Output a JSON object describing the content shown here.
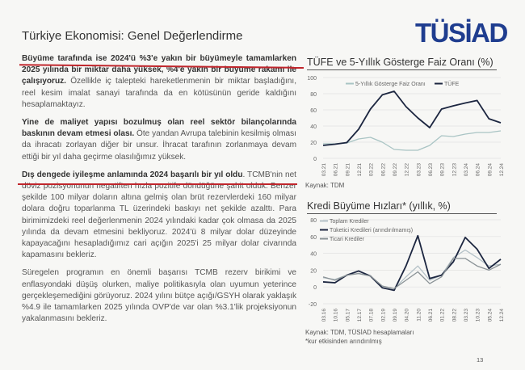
{
  "header": {
    "title": "Türkiye Ekonomisi: Genel Değerlendirme",
    "logo_text": "TÜSİAD",
    "logo_color": "#1f3d8f"
  },
  "text": {
    "p1_bold": "Büyüme tarafında ise 2024'ü %3'e yakın bir büyümeyle tamamlarken 2025 yılında bir miktar daha yüksek, %4'e yakın bir büyüme rakamı ile çalışıyoruz.",
    "p1_rest": " Özellikle iç talepteki hareketlenmenin bir miktar başladığını, reel kesim imalat sanayi tarafında da en kötüsünün geride kaldığını hesaplamaktayız.",
    "p2_bold": "Yine de maliyet yapısı bozulmuş olan reel sektör bilançolarında baskının devam etmesi olası.",
    "p2_rest": " Öte yandan Avrupa talebinin kesilmiş olması da ihracatı zorlayan diğer bir unsur. İhracat tarafının zorlanmaya devam ettiği bir yıl daha geçirme olasılığımız yüksek.",
    "p3_bold": "Dış dengede iyileşme anlamında 2024 başarılı bir yıl oldu",
    "p3_rest": ". TCMB'nin net döviz pozisyonunun negatiften hızla pozitife döndüğüne şahit olduk. Benzer şekilde 100 milyar doların altına gelmiş olan brüt rezervlerdeki 160 milyar dolara doğru toparlanma TL üzerindeki baskıyı net şekilde azalttı. Para birimimizdeki reel değerlenmenin 2024 yılındaki kadar çok olmasa da 2025 yılında da devam etmesini bekliyoruz. 2024'ü 8 milyar dolar düzeyinde kapayacağını hesapladığımız cari açığın 2025'i 25 milyar dolar civarında kapamasını bekleriz.",
    "p4": "Süregelen programın en önemli başarısı TCMB rezerv birikimi ve enflasyondaki düşüş olurken, maliye politikasıyla olan uyumun yeterince gerçekleşemediğini görüyoruz. 2024 yılını bütçe açığı/GSYH olarak yaklaşık %4.9 ile tamamlarken 2025 yılında OVP'de var olan %3.1'lik projeksiyonun yakalanmasını bekleriz."
  },
  "page_number": "13",
  "chart_data": [
    {
      "type": "line",
      "title": "TÜFE ve 5-Yıllık Gösterge Faiz Oranı (%)",
      "source": "Kaynak: TDM",
      "ylim": [
        0,
        100
      ],
      "yticks": [
        0,
        20,
        40,
        60,
        80,
        100
      ],
      "grid": true,
      "legend": "top",
      "categories": [
        "03.21",
        "06.21",
        "09.21",
        "12.21",
        "03.22",
        "06.22",
        "09.22",
        "12.22",
        "03.23",
        "06.23",
        "09.23",
        "12.23",
        "03.24",
        "06.24",
        "09.24",
        "12.24"
      ],
      "series": [
        {
          "name": "5-Yıllık Gösterge Faiz Oranı",
          "color": "#a9c4c4",
          "values": [
            18,
            18,
            19,
            24,
            26,
            20,
            11,
            10,
            10,
            16,
            28,
            27,
            30,
            32,
            32,
            34
          ]
        },
        {
          "name": "TÜFE",
          "color": "#1c2640",
          "values": [
            16,
            17.5,
            19.5,
            36,
            61,
            78.6,
            83,
            64,
            50,
            38,
            61,
            65,
            68.5,
            71.6,
            49,
            44
          ]
        }
      ]
    },
    {
      "type": "line",
      "title": "Kredi Büyüme Hızları* (yıllık, %)",
      "source": "Kaynak: TDM, TÜSİAD hesaplamaları",
      "note": "*kur etkisinden arındırılmış",
      "ylim": [
        -20,
        80
      ],
      "yticks": [
        -20,
        0,
        20,
        40,
        60,
        80
      ],
      "grid": true,
      "legend": "top-left",
      "categories": [
        "03.16",
        "10.16",
        "05.17",
        "12.17",
        "07.18",
        "02.19",
        "09.19",
        "04.20",
        "11.20",
        "06.21",
        "01.22",
        "08.22",
        "03.23",
        "10.23",
        "05.24",
        "12.24"
      ],
      "series": [
        {
          "name": "Toplam Krediler",
          "color": "#b5c2c8",
          "values": [
            11,
            9,
            14,
            16,
            13,
            1,
            -2,
            12,
            25,
            8,
            14,
            35,
            44,
            35,
            25,
            27
          ]
        },
        {
          "name": "Tüketici Kredileri (arındırılmamış)",
          "color": "#1c2640",
          "values": [
            6,
            5,
            14,
            19,
            13,
            -1,
            -4,
            25,
            61,
            10,
            14,
            30,
            59,
            45,
            22,
            33
          ]
        },
        {
          "name": "Ticari Krediler",
          "color": "#8a9296",
          "values": [
            12,
            8,
            14,
            16,
            13,
            1,
            -2,
            8,
            18,
            4,
            12,
            34,
            34,
            25,
            20,
            27
          ]
        }
      ]
    }
  ]
}
